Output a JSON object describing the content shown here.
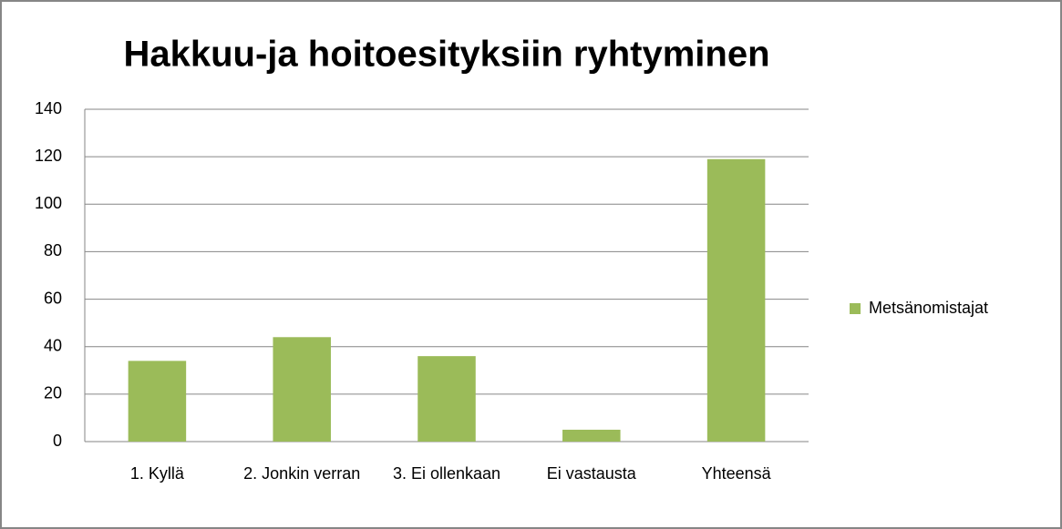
{
  "chart_data": {
    "type": "bar",
    "title": "Hakkuu-ja hoitoesityksiin ryhtyminen",
    "categories": [
      "1. Kyllä",
      "2. Jonkin verran",
      "3. Ei ollenkaan",
      "Ei vastausta",
      "Yhteensä"
    ],
    "series": [
      {
        "name": "Metsänomistajat",
        "color": "#9bbb59",
        "values": [
          34,
          44,
          36,
          5,
          119
        ]
      }
    ],
    "ylim": [
      0,
      140
    ],
    "yticks": [
      0,
      20,
      40,
      60,
      80,
      100,
      120,
      140
    ],
    "grid": true,
    "legend": "right"
  }
}
